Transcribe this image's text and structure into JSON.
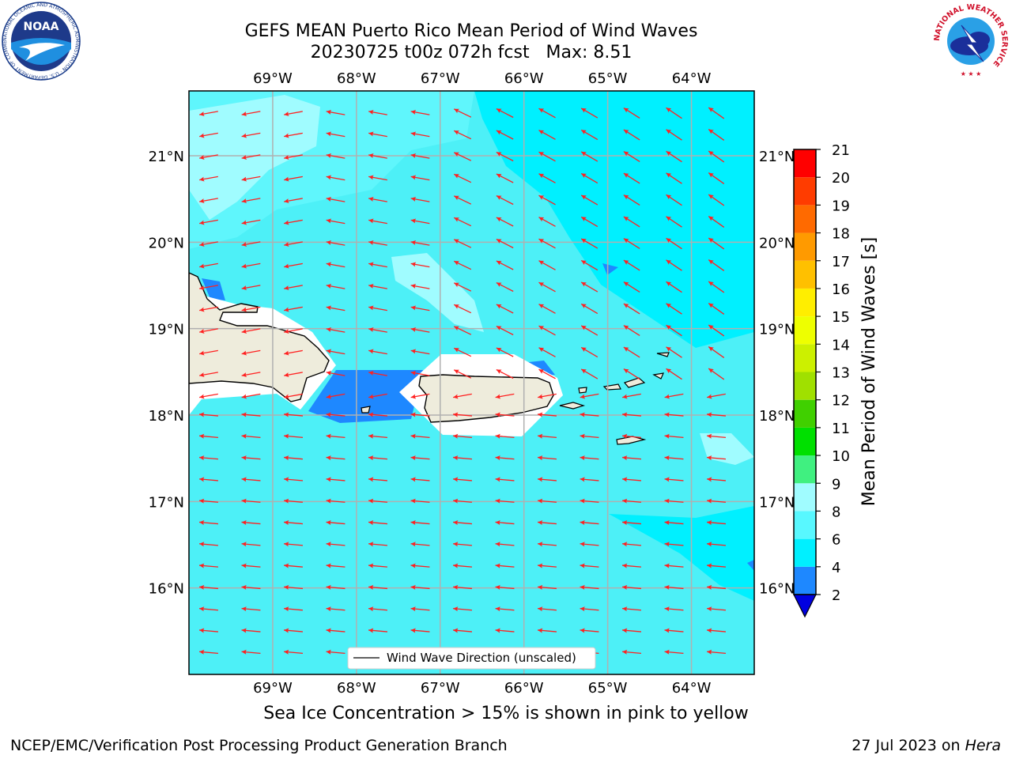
{
  "header": {
    "title_line1": "GEFS MEAN Puerto Rico Mean Period of Wind Waves",
    "title_line2": "20230725 t00z 072h fcst   Max: 8.51"
  },
  "map": {
    "lon_ticks": [
      "69°W",
      "68°W",
      "67°W",
      "66°W",
      "65°W",
      "64°W"
    ],
    "lat_ticks": [
      "21°N",
      "20°N",
      "19°N",
      "18°N",
      "17°N",
      "16°N"
    ],
    "lon_values": [
      -69,
      -68,
      -67,
      -66,
      -65,
      -64
    ],
    "lat_values": [
      21,
      20,
      19,
      18,
      17,
      16
    ],
    "extent": {
      "lon": [
        -70,
        -63.25
      ],
      "lat": [
        15,
        21.75
      ]
    },
    "arrow_color": "#ff2020",
    "legend_label": "Wind Wave Direction (unscaled)",
    "land_color": "#eeecdc",
    "ocean_base_color": "#4df0f7"
  },
  "colorbar": {
    "label": "Mean Period of Wind Waves [s]",
    "ticks": [
      "2",
      "4",
      "6",
      "8",
      "9",
      "10",
      "11",
      "12",
      "13",
      "14",
      "15",
      "16",
      "17",
      "18",
      "19",
      "20",
      "21"
    ],
    "colors": [
      "#0044ff",
      "#1e88ff",
      "#00f0ff",
      "#58f8ff",
      "#a0fcff",
      "#40f080",
      "#00e000",
      "#40d000",
      "#a0e000",
      "#ccf000",
      "#eeff00",
      "#ffee00",
      "#ffc000",
      "#ff9a00",
      "#ff6a00",
      "#ff3c00",
      "#ff0000"
    ],
    "under_color": "#0000e0"
  },
  "caption": "Sea Ice Concentration > 15% is shown in pink to yellow",
  "footer": {
    "credit": "NCEP/EMC/Verification Post Processing Product Generation Branch",
    "date_prefix": "27 Jul 2023 on ",
    "machine": "Hera"
  },
  "logos": {
    "noaa_text": "NOAA",
    "noaa_ring": "NATIONAL OCEANIC AND ATMOSPHERIC ADMINISTRATION · U.S. DEPARTMENT OF COMMERCE",
    "nws_ring": "NATIONAL WEATHER SERVICE"
  }
}
